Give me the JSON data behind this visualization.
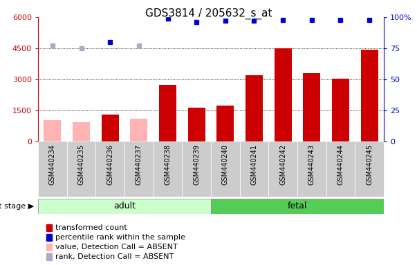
{
  "title": "GDS3814 / 205632_s_at",
  "samples": [
    "GSM440234",
    "GSM440235",
    "GSM440236",
    "GSM440237",
    "GSM440238",
    "GSM440239",
    "GSM440240",
    "GSM440241",
    "GSM440242",
    "GSM440243",
    "GSM440244",
    "GSM440245"
  ],
  "transformed_count": [
    1050,
    950,
    1300,
    1100,
    2750,
    1650,
    1750,
    3200,
    4500,
    3300,
    3050,
    4450
  ],
  "detection_absent": [
    true,
    true,
    false,
    true,
    false,
    false,
    false,
    false,
    false,
    false,
    false,
    false
  ],
  "percentile_rank_pct": [
    77,
    75,
    80,
    77,
    99,
    96,
    97,
    97,
    98,
    98,
    98,
    98
  ],
  "ylim_left": [
    0,
    6000
  ],
  "ylim_right": [
    0,
    100
  ],
  "yticks_left": [
    0,
    1500,
    3000,
    4500,
    6000
  ],
  "yticks_right": [
    0,
    25,
    50,
    75,
    100
  ],
  "bar_color_present": "#cc0000",
  "bar_color_absent": "#ffb3b3",
  "dot_color_present": "#0000cc",
  "dot_color_absent": "#aaaacc",
  "adult_color_light": "#ccffcc",
  "adult_color_dark": "#55cc55",
  "fetal_color_dark": "#33bb33",
  "group_label_fontsize": 9,
  "title_fontsize": 11,
  "legend_fontsize": 8,
  "tick_bg_color": "#cccccc"
}
